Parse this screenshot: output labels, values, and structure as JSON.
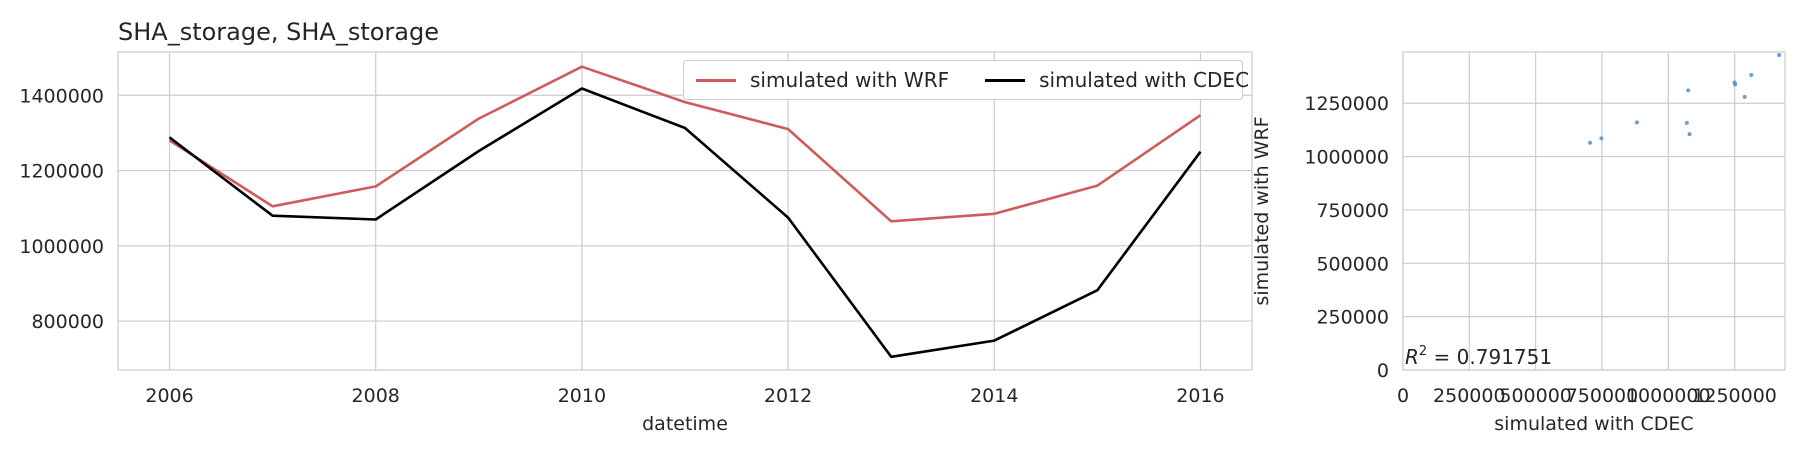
{
  "chart_data": [
    {
      "type": "line",
      "title": "SHA_storage, SHA_storage",
      "xlabel": "datetime",
      "ylabel": "",
      "x": [
        2006,
        2007,
        2008,
        2009,
        2010,
        2011,
        2012,
        2013,
        2014,
        2015,
        2016
      ],
      "xlim": [
        2005.5,
        2016.5
      ],
      "ylim": [
        670000,
        1515000
      ],
      "xticks": [
        2006,
        2008,
        2010,
        2012,
        2014,
        2016
      ],
      "xtick_labels": [
        "2006",
        "2008",
        "2010",
        "2012",
        "2014",
        "2016"
      ],
      "yticks": [
        800000,
        1000000,
        1200000,
        1400000
      ],
      "ytick_labels": [
        "800000",
        "1000000",
        "1200000",
        "1400000"
      ],
      "grid": true,
      "legend_position": "top-right",
      "series": [
        {
          "name": "simulated with WRF",
          "color": "#cd5c5c",
          "values": [
            1280000,
            1105000,
            1158000,
            1338000,
            1476000,
            1382000,
            1310000,
            1065000,
            1085000,
            1160000,
            1347000
          ]
        },
        {
          "name": "simulated with CDEC",
          "color": "#000000",
          "values": [
            1288000,
            1080000,
            1070000,
            1252000,
            1418000,
            1313000,
            1075000,
            705000,
            748000,
            882000,
            1250000
          ]
        }
      ]
    },
    {
      "type": "scatter",
      "title": "",
      "xlabel": "simulated with CDEC",
      "ylabel": "simulated with WRF",
      "xlim": [
        0,
        1440000
      ],
      "ylim": [
        0,
        1490000
      ],
      "xticks": [
        0,
        250000,
        500000,
        750000,
        1000000,
        1250000
      ],
      "xtick_labels": [
        "0",
        "250000",
        "500000",
        "750000",
        "1000000",
        "1250000"
      ],
      "yticks": [
        0,
        250000,
        500000,
        750000,
        1000000,
        1250000
      ],
      "ytick_labels": [
        "0",
        "250000",
        "500000",
        "750000",
        "1000000",
        "1250000"
      ],
      "grid": true,
      "color": "#4c8fd0",
      "annotation": "R^2 = 0.791751",
      "annotation_parts": {
        "var": "R",
        "sup": "2",
        "rest": " = 0.791751"
      },
      "points": [
        {
          "x": 1288000,
          "y": 1280000
        },
        {
          "x": 1080000,
          "y": 1105000
        },
        {
          "x": 1070000,
          "y": 1158000
        },
        {
          "x": 1252000,
          "y": 1338000
        },
        {
          "x": 1418000,
          "y": 1476000
        },
        {
          "x": 1313000,
          "y": 1382000
        },
        {
          "x": 1075000,
          "y": 1310000
        },
        {
          "x": 705000,
          "y": 1065000
        },
        {
          "x": 748000,
          "y": 1085000
        },
        {
          "x": 882000,
          "y": 1160000
        },
        {
          "x": 1250000,
          "y": 1347000
        }
      ]
    }
  ]
}
